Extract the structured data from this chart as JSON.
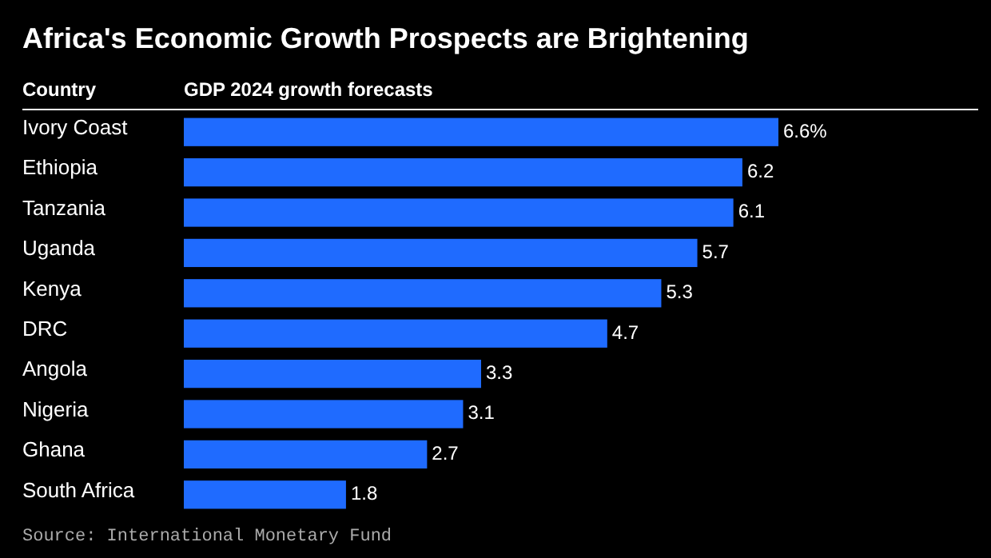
{
  "chart_data": {
    "type": "bar",
    "orientation": "horizontal",
    "title": "Africa's Economic Growth Prospects are Brightening",
    "ylabel": "Country",
    "xlabel": "GDP 2024 growth forecasts",
    "categories": [
      "Ivory Coast",
      "Ethiopia",
      "Tanzania",
      "Uganda",
      "Kenya",
      "DRC",
      "Angola",
      "Nigeria",
      "Ghana",
      "South Africa"
    ],
    "values": [
      6.6,
      6.2,
      6.1,
      5.7,
      5.3,
      4.7,
      3.3,
      3.1,
      2.7,
      1.8
    ],
    "value_labels": [
      "6.6%",
      "6.2",
      "6.1",
      "5.7",
      "5.3",
      "4.7",
      "3.3",
      "3.1",
      "2.7",
      "1.8"
    ],
    "color": "#1f6bff",
    "annotations": [
      "Source: International Monetary Fund"
    ]
  }
}
